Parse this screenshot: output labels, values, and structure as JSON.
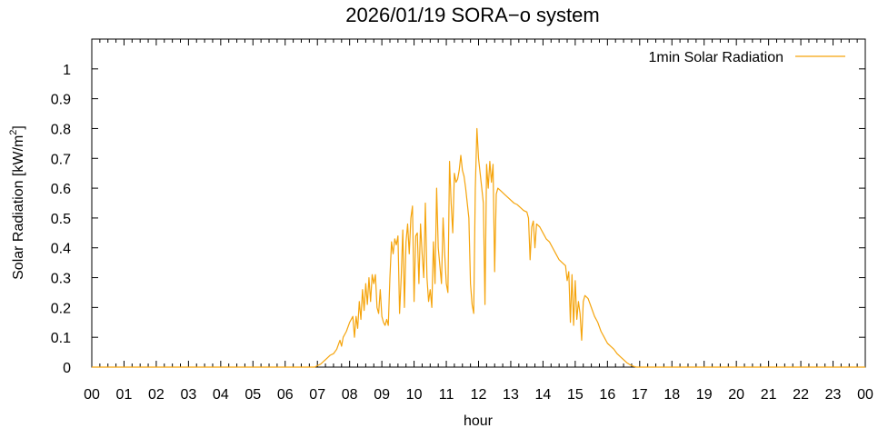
{
  "chart_data": {
    "type": "line",
    "title": "2026/01/19 SORA−o system",
    "xlabel": "hour",
    "ylabel_main": "Solar Radiation [kW/m",
    "ylabel_sup": "2",
    "ylabel_close": "]",
    "xlim": [
      0,
      24
    ],
    "ylim": [
      0,
      1.1
    ],
    "grid": false,
    "legend_position": "top-right",
    "x_ticks": [
      "00",
      "01",
      "02",
      "03",
      "04",
      "05",
      "06",
      "07",
      "08",
      "09",
      "10",
      "11",
      "12",
      "13",
      "14",
      "15",
      "16",
      "17",
      "18",
      "19",
      "20",
      "21",
      "22",
      "23",
      "00"
    ],
    "y_ticks": [
      "0",
      "0.1",
      "0.2",
      "0.3",
      "0.4",
      "0.5",
      "0.6",
      "0.7",
      "0.8",
      "0.9",
      "1"
    ],
    "series": [
      {
        "name": "1min Solar Radiation",
        "color": "#f5a40c",
        "points": [
          [
            0,
            0
          ],
          [
            6.92,
            0
          ],
          [
            7.0,
            0.005
          ],
          [
            7.1,
            0.01
          ],
          [
            7.2,
            0.02
          ],
          [
            7.3,
            0.03
          ],
          [
            7.4,
            0.04
          ],
          [
            7.5,
            0.045
          ],
          [
            7.6,
            0.06
          ],
          [
            7.7,
            0.09
          ],
          [
            7.75,
            0.07
          ],
          [
            7.8,
            0.1
          ],
          [
            7.9,
            0.12
          ],
          [
            8.0,
            0.15
          ],
          [
            8.05,
            0.16
          ],
          [
            8.1,
            0.17
          ],
          [
            8.15,
            0.1
          ],
          [
            8.2,
            0.17
          ],
          [
            8.25,
            0.13
          ],
          [
            8.3,
            0.22
          ],
          [
            8.35,
            0.16
          ],
          [
            8.4,
            0.26
          ],
          [
            8.45,
            0.19
          ],
          [
            8.5,
            0.28
          ],
          [
            8.55,
            0.21
          ],
          [
            8.6,
            0.3
          ],
          [
            8.65,
            0.22
          ],
          [
            8.7,
            0.31
          ],
          [
            8.75,
            0.28
          ],
          [
            8.8,
            0.31
          ],
          [
            8.85,
            0.2
          ],
          [
            8.9,
            0.18
          ],
          [
            8.95,
            0.26
          ],
          [
            9.0,
            0.17
          ],
          [
            9.05,
            0.15
          ],
          [
            9.1,
            0.14
          ],
          [
            9.15,
            0.16
          ],
          [
            9.2,
            0.14
          ],
          [
            9.25,
            0.3
          ],
          [
            9.3,
            0.42
          ],
          [
            9.35,
            0.38
          ],
          [
            9.4,
            0.43
          ],
          [
            9.45,
            0.41
          ],
          [
            9.5,
            0.44
          ],
          [
            9.55,
            0.18
          ],
          [
            9.6,
            0.3
          ],
          [
            9.65,
            0.46
          ],
          [
            9.7,
            0.2
          ],
          [
            9.75,
            0.42
          ],
          [
            9.8,
            0.48
          ],
          [
            9.85,
            0.38
          ],
          [
            9.9,
            0.5
          ],
          [
            9.95,
            0.54
          ],
          [
            10.0,
            0.22
          ],
          [
            10.05,
            0.44
          ],
          [
            10.1,
            0.45
          ],
          [
            10.15,
            0.28
          ],
          [
            10.2,
            0.48
          ],
          [
            10.25,
            0.38
          ],
          [
            10.3,
            0.3
          ],
          [
            10.35,
            0.55
          ],
          [
            10.4,
            0.3
          ],
          [
            10.45,
            0.22
          ],
          [
            10.5,
            0.26
          ],
          [
            10.55,
            0.2
          ],
          [
            10.6,
            0.42
          ],
          [
            10.65,
            0.28
          ],
          [
            10.7,
            0.6
          ],
          [
            10.75,
            0.4
          ],
          [
            10.8,
            0.34
          ],
          [
            10.85,
            0.28
          ],
          [
            10.9,
            0.5
          ],
          [
            10.95,
            0.38
          ],
          [
            11.0,
            0.28
          ],
          [
            11.05,
            0.25
          ],
          [
            11.1,
            0.69
          ],
          [
            11.15,
            0.55
          ],
          [
            11.2,
            0.45
          ],
          [
            11.25,
            0.65
          ],
          [
            11.3,
            0.62
          ],
          [
            11.35,
            0.63
          ],
          [
            11.4,
            0.66
          ],
          [
            11.45,
            0.71
          ],
          [
            11.5,
            0.66
          ],
          [
            11.55,
            0.64
          ],
          [
            11.6,
            0.6
          ],
          [
            11.65,
            0.55
          ],
          [
            11.7,
            0.5
          ],
          [
            11.75,
            0.28
          ],
          [
            11.8,
            0.21
          ],
          [
            11.85,
            0.18
          ],
          [
            11.9,
            0.6
          ],
          [
            11.95,
            0.8
          ],
          [
            12.0,
            0.7
          ],
          [
            12.05,
            0.65
          ],
          [
            12.1,
            0.6
          ],
          [
            12.15,
            0.55
          ],
          [
            12.2,
            0.21
          ],
          [
            12.25,
            0.68
          ],
          [
            12.3,
            0.6
          ],
          [
            12.35,
            0.69
          ],
          [
            12.4,
            0.62
          ],
          [
            12.45,
            0.68
          ],
          [
            12.5,
            0.32
          ],
          [
            12.55,
            0.58
          ],
          [
            12.6,
            0.6
          ],
          [
            12.7,
            0.59
          ],
          [
            12.8,
            0.58
          ],
          [
            12.9,
            0.57
          ],
          [
            13.0,
            0.56
          ],
          [
            13.1,
            0.55
          ],
          [
            13.2,
            0.545
          ],
          [
            13.3,
            0.535
          ],
          [
            13.4,
            0.525
          ],
          [
            13.5,
            0.52
          ],
          [
            13.55,
            0.5
          ],
          [
            13.6,
            0.36
          ],
          [
            13.65,
            0.47
          ],
          [
            13.7,
            0.49
          ],
          [
            13.75,
            0.4
          ],
          [
            13.8,
            0.48
          ],
          [
            13.9,
            0.47
          ],
          [
            14.0,
            0.45
          ],
          [
            14.1,
            0.43
          ],
          [
            14.2,
            0.42
          ],
          [
            14.3,
            0.4
          ],
          [
            14.4,
            0.38
          ],
          [
            14.5,
            0.36
          ],
          [
            14.6,
            0.35
          ],
          [
            14.7,
            0.34
          ],
          [
            14.75,
            0.29
          ],
          [
            14.8,
            0.32
          ],
          [
            14.85,
            0.15
          ],
          [
            14.9,
            0.31
          ],
          [
            14.95,
            0.14
          ],
          [
            15.0,
            0.29
          ],
          [
            15.05,
            0.16
          ],
          [
            15.1,
            0.22
          ],
          [
            15.15,
            0.18
          ],
          [
            15.2,
            0.09
          ],
          [
            15.25,
            0.22
          ],
          [
            15.3,
            0.24
          ],
          [
            15.4,
            0.23
          ],
          [
            15.5,
            0.2
          ],
          [
            15.6,
            0.17
          ],
          [
            15.7,
            0.15
          ],
          [
            15.8,
            0.12
          ],
          [
            15.9,
            0.1
          ],
          [
            16.0,
            0.08
          ],
          [
            16.1,
            0.07
          ],
          [
            16.2,
            0.06
          ],
          [
            16.3,
            0.045
          ],
          [
            16.4,
            0.035
          ],
          [
            16.5,
            0.025
          ],
          [
            16.6,
            0.015
          ],
          [
            16.7,
            0.008
          ],
          [
            16.8,
            0.003
          ],
          [
            16.9,
            0
          ],
          [
            24,
            0
          ]
        ]
      }
    ]
  }
}
